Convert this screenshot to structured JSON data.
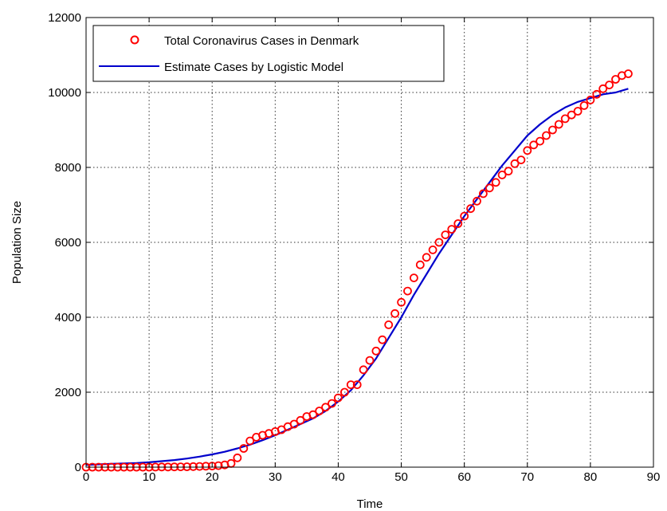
{
  "chart_data": {
    "type": "scatter",
    "title": "",
    "xlabel": "Time",
    "ylabel": "Population Size",
    "xlim": [
      0,
      90
    ],
    "ylim": [
      0,
      12000
    ],
    "xticks": [
      0,
      10,
      20,
      30,
      40,
      50,
      60,
      70,
      80,
      90
    ],
    "yticks": [
      0,
      2000,
      4000,
      6000,
      8000,
      10000,
      12000
    ],
    "grid": true,
    "legend_position": "top-left",
    "series": [
      {
        "name": "Total Coronavirus Cases in Denmark",
        "kind": "markers",
        "marker": "circle",
        "color": "#ff0000",
        "x": [
          0,
          1,
          2,
          3,
          4,
          5,
          6,
          7,
          8,
          9,
          10,
          11,
          12,
          13,
          14,
          15,
          16,
          17,
          18,
          19,
          20,
          21,
          22,
          23,
          24,
          25,
          26,
          27,
          28,
          29,
          30,
          31,
          32,
          33,
          34,
          35,
          36,
          37,
          38,
          39,
          40,
          41,
          42,
          43,
          44,
          45,
          46,
          47,
          48,
          49,
          50,
          51,
          52,
          53,
          54,
          55,
          56,
          57,
          58,
          59,
          60,
          61,
          62,
          63,
          64,
          65,
          66,
          67,
          68,
          69,
          70,
          71,
          72,
          73,
          74,
          75,
          76,
          77,
          78,
          79,
          80,
          81,
          82,
          83,
          84,
          85,
          86
        ],
        "y": [
          1,
          1,
          1,
          1,
          1,
          1,
          1,
          1,
          1,
          1,
          1,
          3,
          4,
          5,
          6,
          8,
          10,
          15,
          20,
          25,
          30,
          40,
          60,
          100,
          250,
          500,
          700,
          800,
          850,
          900,
          950,
          1000,
          1080,
          1150,
          1250,
          1350,
          1400,
          1500,
          1600,
          1700,
          1850,
          2000,
          2200,
          2200,
          2600,
          2850,
          3100,
          3400,
          3800,
          4100,
          4400,
          4700,
          5050,
          5400,
          5600,
          5800,
          6000,
          6200,
          6350,
          6500,
          6700,
          6900,
          7100,
          7300,
          7450,
          7600,
          7800,
          7900,
          8100,
          8200,
          8450,
          8600,
          8700,
          8850,
          9000,
          9150,
          9300,
          9400,
          9500,
          9650,
          9800,
          9950,
          10100,
          10200,
          10350,
          10450,
          10500
        ]
      },
      {
        "name": "Estimate Cases by Logistic Model",
        "kind": "line",
        "color": "#0000cc",
        "x": [
          0,
          2,
          4,
          6,
          8,
          10,
          12,
          14,
          16,
          18,
          20,
          22,
          24,
          26,
          28,
          30,
          32,
          34,
          36,
          38,
          40,
          42,
          44,
          46,
          48,
          50,
          52,
          54,
          56,
          58,
          60,
          62,
          64,
          66,
          68,
          70,
          72,
          74,
          76,
          78,
          80,
          82,
          84,
          86
        ],
        "y": [
          60,
          75,
          90,
          100,
          110,
          130,
          160,
          190,
          230,
          280,
          340,
          410,
          500,
          600,
          720,
          850,
          1000,
          1150,
          1300,
          1500,
          1750,
          2050,
          2450,
          2900,
          3450,
          4000,
          4600,
          5150,
          5700,
          6200,
          6700,
          7150,
          7600,
          8050,
          8450,
          8850,
          9150,
          9400,
          9600,
          9750,
          9850,
          9950,
          10000,
          10100
        ]
      }
    ]
  }
}
